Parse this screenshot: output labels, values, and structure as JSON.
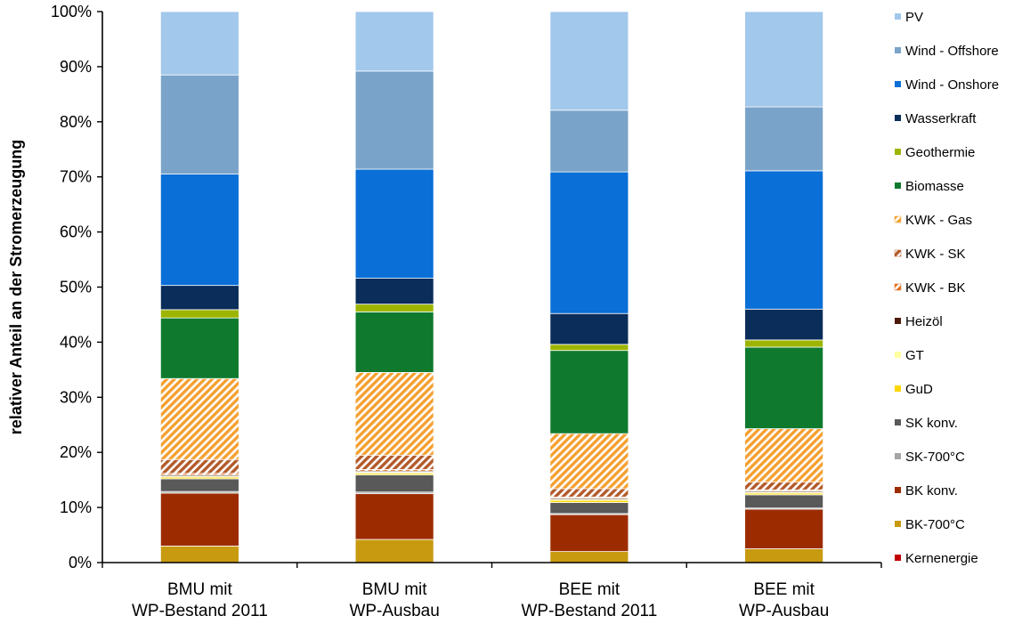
{
  "chart_data": {
    "type": "bar",
    "stacked": true,
    "title": "",
    "xlabel": "",
    "ylabel": "relativer Anteil an der Stromerzeugung",
    "ylim": [
      0,
      100
    ],
    "yticks": [
      "0%",
      "10%",
      "20%",
      "30%",
      "40%",
      "50%",
      "60%",
      "70%",
      "80%",
      "90%",
      "100%"
    ],
    "grid": false,
    "legend_position": "right",
    "categories": [
      [
        "BMU mit",
        "WP-Bestand 2011"
      ],
      [
        "BMU mit",
        "WP-Ausbau"
      ],
      [
        "BEE mit",
        "WP-Bestand 2011"
      ],
      [
        "BEE mit",
        "WP-Ausbau"
      ]
    ],
    "series": [
      {
        "name": "Kernenergie",
        "color": "#c00000",
        "pattern": "solid",
        "values": [
          0,
          0,
          0,
          0
        ]
      },
      {
        "name": "BK-700°C",
        "color": "#c89a10",
        "pattern": "solid",
        "values": [
          3.0,
          4.2,
          2.0,
          2.5
        ]
      },
      {
        "name": "BK konv.",
        "color": "#9c2c00",
        "pattern": "solid",
        "values": [
          9.6,
          8.3,
          6.7,
          7.2
        ]
      },
      {
        "name": "SK-700°C",
        "color": "#a6a6a6",
        "pattern": "solid",
        "values": [
          0.3,
          0.3,
          0.2,
          0.2
        ]
      },
      {
        "name": "SK konv.",
        "color": "#595959",
        "pattern": "solid",
        "values": [
          2.3,
          3.1,
          2.0,
          2.4
        ]
      },
      {
        "name": "GuD",
        "color": "#ffd700",
        "pattern": "solid",
        "values": [
          0.3,
          0.3,
          0.4,
          0.3
        ]
      },
      {
        "name": "GT",
        "color": "#ffffa0",
        "pattern": "solid",
        "values": [
          0.2,
          0.2,
          0.2,
          0.2
        ]
      },
      {
        "name": "Heizöl",
        "color": "#4d1a0d",
        "pattern": "solid",
        "values": [
          0.2,
          0.2,
          0.2,
          0.2
        ]
      },
      {
        "name": "KWK - BK",
        "color": "#e07020",
        "pattern": "hatch",
        "values": [
          0.3,
          0.3,
          0.2,
          0.2
        ]
      },
      {
        "name": "KWK - SK",
        "color": "#b35a2a",
        "pattern": "hatch",
        "values": [
          2.5,
          2.6,
          1.5,
          1.4
        ]
      },
      {
        "name": "KWK - Gas",
        "color": "#f5a030",
        "pattern": "hatch",
        "values": [
          14.7,
          15.0,
          10.0,
          9.7
        ]
      },
      {
        "name": "Biomasse",
        "color": "#0f7a2e",
        "pattern": "solid",
        "values": [
          11.0,
          11.0,
          15.1,
          14.8
        ]
      },
      {
        "name": "Geothermie",
        "color": "#9db500",
        "pattern": "solid",
        "values": [
          1.5,
          1.4,
          1.1,
          1.3
        ]
      },
      {
        "name": "Wasserkraft",
        "color": "#0a2d5a",
        "pattern": "solid",
        "values": [
          4.4,
          4.7,
          5.6,
          5.6
        ]
      },
      {
        "name": "Wind - Onshore",
        "color": "#0a6fd6",
        "pattern": "solid",
        "values": [
          20.2,
          19.8,
          25.7,
          25.1
        ]
      },
      {
        "name": "Wind - Offshore",
        "color": "#7aa3c9",
        "pattern": "solid",
        "values": [
          18.0,
          17.8,
          11.2,
          11.6
        ]
      },
      {
        "name": "PV",
        "color": "#a2c8eb",
        "pattern": "solid",
        "values": [
          11.5,
          10.8,
          17.9,
          17.3
        ]
      }
    ]
  }
}
